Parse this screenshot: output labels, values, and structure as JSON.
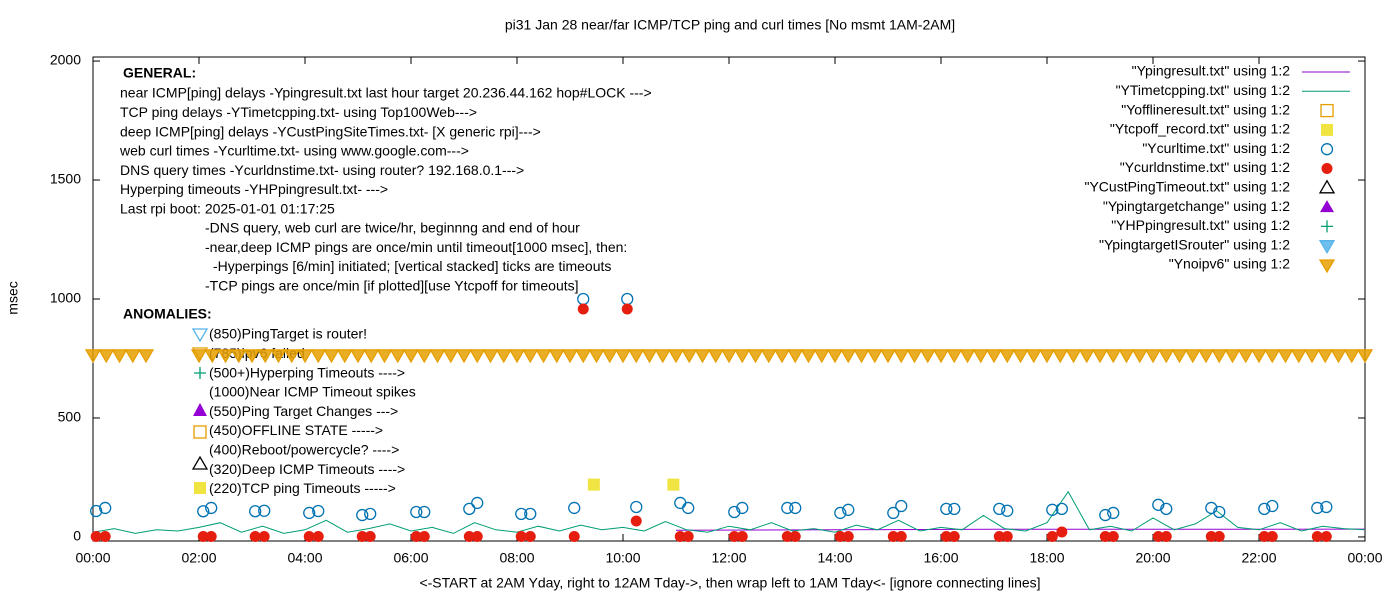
{
  "chart_data": {
    "type": "scatter",
    "title": "pi31 Jan 28  near/far ICMP/TCP ping and curl times [No msmt 1AM-2AM]",
    "x_label": "<-START at 2AM Yday, right to 12AM Tday->, then wrap left to 1AM Tday<- [ignore connecting lines]",
    "y_label": "msec",
    "xlim": [
      0,
      24
    ],
    "ylim": [
      -17,
      2017
    ],
    "grid": false,
    "legend": "top-right",
    "xticks": [
      {
        "value": 0,
        "label": "00:00"
      },
      {
        "value": 2,
        "label": "02:00"
      },
      {
        "value": 4,
        "label": "04:00"
      },
      {
        "value": 6,
        "label": "06:00"
      },
      {
        "value": 8,
        "label": "08:00"
      },
      {
        "value": 10,
        "label": "10:00"
      },
      {
        "value": 12,
        "label": "12:00"
      },
      {
        "value": 14,
        "label": "14:00"
      },
      {
        "value": 16,
        "label": "16:00"
      },
      {
        "value": 18,
        "label": "18:00"
      },
      {
        "value": 20,
        "label": "20:00"
      },
      {
        "value": 22,
        "label": "22:00"
      },
      {
        "value": 24,
        "label": "00:00"
      }
    ],
    "yticks": [
      0,
      500,
      1000,
      1500,
      2000
    ],
    "general_heading": "GENERAL:",
    "general": [
      "near ICMP[ping] delays -Ypingresult.txt last hour target 20.236.44.162 hop#LOCK --->",
      "TCP ping delays -YTimetcpping.txt- using Top100Web--->",
      "deep ICMP[ping] delays -YCustPingSiteTimes.txt- [X generic rpi]--->",
      "web curl times -Ycurltime.txt- using www.google.com--->",
      "DNS query times -Ycurldnstime.txt- using router? 192.168.0.1--->",
      "Hyperping timeouts -YHPpingresult.txt- --->",
      "Last rpi boot: 2025-01-01 01:17:25"
    ],
    "notes": [
      "-DNS query, web curl are twice/hr, beginnng and end of hour",
      "-near,deep ICMP pings are once/min until timeout[1000 msec], then:",
      "-Hyperpings [6/min] initiated; [vertical stacked] ticks are timeouts",
      "-TCP pings are once/min [if plotted][use Ytcpoff for timeouts]"
    ],
    "anomalies_heading": "ANOMALIES:",
    "anomalies": [
      "(850)PingTarget is router!",
      "(785)ipv6 failed",
      "(500+)Hyperping Timeouts ---->",
      "(1000)Near ICMP Timeout spikes",
      "(550)Ping Target Changes --->",
      "(450)OFFLINE STATE ----->",
      "(400)Reboot/powercycle? ---->",
      "(320)Deep ICMP Timeouts ---->",
      "(220)TCP ping Timeouts ----->"
    ],
    "series": [
      {
        "name": "\"Ypingresult.txt\" using 1:2",
        "color": "#9400d3",
        "style": "line",
        "x": [
          11,
          14,
          17,
          20,
          24
        ],
        "values": [
          28,
          30,
          32,
          32,
          33
        ]
      },
      {
        "name": "\"YTimetcpping.txt\" using 1:2",
        "color": "#009e73",
        "style": "line",
        "x": [
          0,
          0.4,
          0.8,
          1.2,
          1.6,
          2,
          2.4,
          2.8,
          3.2,
          3.6,
          4,
          4.4,
          4.8,
          5.2,
          5.6,
          6,
          6.4,
          6.8,
          7.2,
          7.6,
          8,
          8.4,
          8.8,
          9.2,
          9.6,
          10,
          10.4,
          10.8,
          11.2,
          11.6,
          12,
          12.4,
          12.8,
          13.2,
          13.6,
          14,
          14.4,
          14.8,
          15.2,
          15.6,
          16,
          16.4,
          16.8,
          17.2,
          17.6,
          18,
          18.4,
          18.8,
          19.2,
          19.6,
          20,
          20.4,
          20.8,
          21.2,
          21.6,
          22,
          22.4,
          22.8,
          23.2,
          23.6,
          24
        ],
        "values": [
          20,
          35,
          15,
          30,
          25,
          40,
          60,
          20,
          45,
          15,
          30,
          70,
          20,
          35,
          55,
          25,
          40,
          15,
          60,
          30,
          20,
          45,
          25,
          50,
          30,
          40,
          25,
          65,
          30,
          20,
          45,
          30,
          60,
          25,
          35,
          20,
          50,
          30,
          70,
          25,
          40,
          30,
          90,
          35,
          25,
          60,
          190,
          30,
          45,
          25,
          80,
          30,
          55,
          110,
          40,
          30,
          60,
          25,
          45,
          35,
          30
        ]
      },
      {
        "name": "\"Yofflineresult.txt\" using 1:2",
        "color": "#e69f00",
        "style": "open-square",
        "x": [],
        "values": []
      },
      {
        "name": "\"Ytcpoff_record.txt\" using 1:2",
        "color": "#f0e442",
        "style": "filled-square",
        "x": [
          9.45,
          10.95
        ],
        "values": [
          220,
          220
        ]
      },
      {
        "name": "\"Ycurltime.txt\" using 1:2",
        "color": "#0072b2",
        "style": "open-circle",
        "x": [
          0.06,
          0.23,
          2.08,
          2.23,
          3.06,
          3.23,
          4.08,
          4.25,
          5.08,
          5.23,
          6.1,
          6.25,
          7.1,
          7.25,
          8.08,
          8.25,
          9.08,
          9.25,
          10.08,
          10.25,
          11.08,
          11.23,
          12.1,
          12.25,
          13.1,
          13.25,
          14.1,
          14.25,
          15.1,
          15.25,
          16.1,
          16.25,
          17.1,
          17.25,
          18.1,
          18.28,
          19.1,
          19.25,
          20.1,
          20.25,
          21.1,
          21.25,
          22.1,
          22.25,
          23.1,
          23.27
        ],
        "values": [
          109,
          122,
          108,
          122,
          108,
          110,
          101,
          109,
          92,
          97,
          105,
          105,
          118,
          143,
          97,
          97,
          122,
          1000,
          1000,
          126,
          143,
          122,
          105,
          122,
          122,
          122,
          101,
          114,
          101,
          130,
          118,
          118,
          118,
          110,
          114,
          118,
          92,
          101,
          135,
          118,
          122,
          105,
          118,
          130,
          122,
          126
        ]
      },
      {
        "name": "\"Ycurldnstime.txt\" using 1:2",
        "color": "#e51e10",
        "style": "filled-circle",
        "x": [
          0.06,
          0.23,
          2.08,
          2.23,
          3.06,
          3.23,
          4.08,
          4.25,
          5.08,
          5.23,
          6.1,
          6.25,
          7.1,
          7.25,
          8.08,
          8.25,
          9.08,
          9.25,
          10.08,
          10.25,
          11.08,
          11.23,
          12.1,
          12.25,
          13.1,
          13.25,
          14.1,
          14.25,
          15.1,
          15.25,
          16.1,
          16.25,
          17.1,
          17.25,
          18.1,
          18.28,
          19.1,
          19.25,
          20.1,
          20.25,
          21.1,
          21.25,
          22.1,
          22.25,
          23.1,
          23.27
        ],
        "values": [
          2,
          2,
          2,
          2,
          2,
          2,
          2,
          2,
          2,
          2,
          2,
          2,
          2,
          2,
          2,
          2,
          2,
          958,
          958,
          67,
          2,
          2,
          2,
          2,
          2,
          2,
          2,
          2,
          2,
          2,
          2,
          2,
          2,
          2,
          2,
          21,
          2,
          2,
          2,
          2,
          2,
          2,
          2,
          2,
          2,
          2
        ]
      },
      {
        "name": "\"YCustPingTimeout.txt\" using 1:2",
        "color": "#000000",
        "style": "open-triangle",
        "x": [],
        "values": []
      },
      {
        "name": "\"Ypingtargetchange\" using 1:2",
        "color": "#9400d3",
        "style": "filled-triangle",
        "x": [],
        "values": []
      },
      {
        "name": "\"YHPpingresult.txt\" using 1:2",
        "color": "#009e73",
        "style": "plus",
        "x": [],
        "values": []
      },
      {
        "name": "\"YpingtargetISrouter\" using 1:2",
        "color": "#56b4e9",
        "style": "open-inv-triangle",
        "x": [],
        "values": []
      },
      {
        "name": "\"Ynoipv6\" using 1:2",
        "color": "#e69f00",
        "style": "open-inv-triangle",
        "x": [
          0,
          0.25,
          0.5,
          0.75,
          1,
          2,
          2.25,
          2.5,
          2.75,
          3,
          3.25,
          3.5,
          3.75,
          4,
          4.25,
          4.5,
          4.75,
          5,
          5.25,
          5.5,
          5.75,
          6,
          6.25,
          6.5,
          6.75,
          7,
          7.25,
          7.5,
          7.75,
          8,
          8.25,
          8.5,
          8.75,
          9,
          9.25,
          9.5,
          9.75,
          10,
          10.25,
          10.5,
          10.75,
          11,
          11.25,
          11.5,
          11.75,
          12,
          12.25,
          12.5,
          12.75,
          13,
          13.25,
          13.5,
          13.75,
          14,
          14.25,
          14.5,
          14.75,
          15,
          15.25,
          15.5,
          15.75,
          16,
          16.25,
          16.5,
          16.75,
          17,
          17.25,
          17.5,
          17.75,
          18,
          18.25,
          18.5,
          18.75,
          19,
          19.25,
          19.5,
          19.75,
          20,
          20.25,
          20.5,
          20.75,
          21,
          21.25,
          21.5,
          21.75,
          22,
          22.25,
          22.5,
          22.75,
          23,
          23.25,
          23.5,
          23.75,
          24
        ],
        "values": [
          765,
          765,
          765,
          765,
          765,
          765,
          765,
          765,
          765,
          765,
          765,
          765,
          765,
          765,
          765,
          765,
          765,
          765,
          765,
          765,
          765,
          765,
          765,
          765,
          765,
          765,
          765,
          765,
          765,
          765,
          765,
          765,
          765,
          765,
          765,
          765,
          765,
          765,
          765,
          765,
          765,
          765,
          765,
          765,
          765,
          765,
          765,
          765,
          765,
          765,
          765,
          765,
          765,
          765,
          765,
          765,
          765,
          765,
          765,
          765,
          765,
          765,
          765,
          765,
          765,
          765,
          765,
          765,
          765,
          765,
          765,
          765,
          765,
          765,
          765,
          765,
          765,
          765,
          765,
          765,
          765,
          765,
          765,
          765,
          765,
          765,
          765,
          765,
          765,
          765,
          765,
          765,
          765,
          765
        ]
      }
    ]
  }
}
